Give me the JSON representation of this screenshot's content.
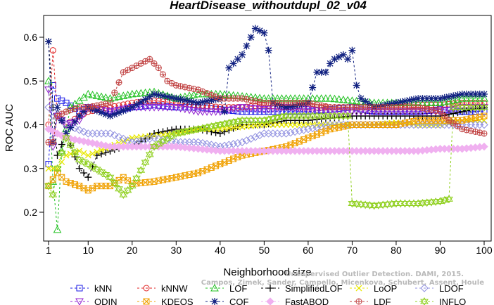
{
  "chart_data": {
    "type": "line",
    "title": "HeartDisease_withoutdupl_02_v04",
    "xlabel": "Neighborhood size",
    "ylabel": "ROC AUC",
    "xlim": [
      1,
      100
    ],
    "ylim": [
      0.15,
      0.65
    ],
    "x_ticks": [
      1,
      10,
      20,
      30,
      40,
      50,
      60,
      70,
      80,
      90,
      100
    ],
    "y_ticks": [
      0.2,
      0.3,
      0.4,
      0.5,
      0.6
    ],
    "legend_position": "bottom",
    "watermark": [
      "Campos, Zimek, Sander, Campello, Micenkova, Schubert, Assent, Houle",
      "Unsupervised Outlier Detection. DAMI, 2015."
    ],
    "series": [
      {
        "name": "kNN",
        "color": "#1a1ae6",
        "marker": "square",
        "points": [
          [
            1,
            0.31
          ],
          [
            2,
            0.49
          ],
          [
            3,
            0.46
          ],
          [
            5,
            0.45
          ],
          [
            8,
            0.43
          ],
          [
            10,
            0.44
          ],
          [
            15,
            0.43
          ],
          [
            20,
            0.44
          ],
          [
            25,
            0.445
          ],
          [
            30,
            0.44
          ],
          [
            35,
            0.44
          ],
          [
            40,
            0.435
          ],
          [
            45,
            0.43
          ],
          [
            50,
            0.43
          ],
          [
            55,
            0.43
          ],
          [
            60,
            0.43
          ],
          [
            65,
            0.435
          ],
          [
            70,
            0.44
          ],
          [
            75,
            0.43
          ],
          [
            80,
            0.43
          ],
          [
            85,
            0.43
          ],
          [
            90,
            0.435
          ],
          [
            95,
            0.43
          ],
          [
            100,
            0.43
          ]
        ]
      },
      {
        "name": "kNNW",
        "color": "#e02020",
        "marker": "circle",
        "points": [
          [
            1,
            0.4
          ],
          [
            2,
            0.57
          ],
          [
            3,
            0.42
          ],
          [
            5,
            0.4
          ],
          [
            8,
            0.42
          ],
          [
            10,
            0.43
          ],
          [
            15,
            0.44
          ],
          [
            20,
            0.45
          ],
          [
            25,
            0.455
          ],
          [
            30,
            0.45
          ],
          [
            35,
            0.445
          ],
          [
            40,
            0.44
          ],
          [
            45,
            0.44
          ],
          [
            50,
            0.445
          ],
          [
            55,
            0.44
          ],
          [
            60,
            0.44
          ],
          [
            65,
            0.44
          ],
          [
            70,
            0.44
          ],
          [
            75,
            0.44
          ],
          [
            80,
            0.44
          ],
          [
            85,
            0.445
          ],
          [
            90,
            0.445
          ],
          [
            95,
            0.45
          ],
          [
            100,
            0.45
          ]
        ]
      },
      {
        "name": "LOF",
        "color": "#20c020",
        "marker": "triangle",
        "points": [
          [
            1,
            0.5
          ],
          [
            2,
            0.27
          ],
          [
            3,
            0.16
          ],
          [
            4,
            0.34
          ],
          [
            6,
            0.44
          ],
          [
            10,
            0.47
          ],
          [
            15,
            0.46
          ],
          [
            20,
            0.47
          ],
          [
            25,
            0.475
          ],
          [
            30,
            0.46
          ],
          [
            35,
            0.47
          ],
          [
            40,
            0.47
          ],
          [
            45,
            0.465
          ],
          [
            50,
            0.46
          ],
          [
            55,
            0.46
          ],
          [
            60,
            0.46
          ],
          [
            65,
            0.46
          ],
          [
            70,
            0.455
          ],
          [
            75,
            0.45
          ],
          [
            80,
            0.45
          ],
          [
            85,
            0.45
          ],
          [
            90,
            0.45
          ],
          [
            95,
            0.46
          ],
          [
            100,
            0.46
          ]
        ]
      },
      {
        "name": "SimplifiedLOF",
        "color": "#000000",
        "marker": "plus",
        "points": [
          [
            1,
            0.59
          ],
          [
            2,
            0.44
          ],
          [
            3,
            0.33
          ],
          [
            5,
            0.38
          ],
          [
            8,
            0.3
          ],
          [
            10,
            0.28
          ],
          [
            12,
            0.33
          ],
          [
            15,
            0.34
          ],
          [
            18,
            0.35
          ],
          [
            20,
            0.35
          ],
          [
            25,
            0.38
          ],
          [
            30,
            0.39
          ],
          [
            35,
            0.39
          ],
          [
            40,
            0.38
          ],
          [
            45,
            0.4
          ],
          [
            50,
            0.4
          ],
          [
            55,
            0.41
          ],
          [
            60,
            0.41
          ],
          [
            65,
            0.415
          ],
          [
            70,
            0.42
          ],
          [
            75,
            0.42
          ],
          [
            80,
            0.42
          ],
          [
            85,
            0.42
          ],
          [
            90,
            0.42
          ],
          [
            95,
            0.43
          ],
          [
            100,
            0.44
          ]
        ]
      },
      {
        "name": "LoOP",
        "color": "#e8e800",
        "marker": "cross",
        "points": [
          [
            1,
            0.3
          ],
          [
            3,
            0.3
          ],
          [
            5,
            0.33
          ],
          [
            8,
            0.34
          ],
          [
            10,
            0.33
          ],
          [
            15,
            0.35
          ],
          [
            20,
            0.37
          ],
          [
            25,
            0.375
          ],
          [
            30,
            0.38
          ],
          [
            35,
            0.39
          ],
          [
            40,
            0.39
          ],
          [
            45,
            0.395
          ],
          [
            50,
            0.4
          ],
          [
            55,
            0.4
          ],
          [
            60,
            0.4
          ],
          [
            65,
            0.4
          ],
          [
            70,
            0.4
          ],
          [
            75,
            0.4
          ],
          [
            80,
            0.405
          ],
          [
            85,
            0.4
          ],
          [
            90,
            0.4
          ],
          [
            95,
            0.41
          ],
          [
            100,
            0.41
          ]
        ]
      },
      {
        "name": "LDOF",
        "color": "#9090e0",
        "marker": "diamond",
        "points": [
          [
            1,
            0.44
          ],
          [
            3,
            0.42
          ],
          [
            5,
            0.4
          ],
          [
            10,
            0.38
          ],
          [
            15,
            0.38
          ],
          [
            20,
            0.36
          ],
          [
            25,
            0.37
          ],
          [
            30,
            0.36
          ],
          [
            35,
            0.36
          ],
          [
            40,
            0.35
          ],
          [
            45,
            0.36
          ],
          [
            50,
            0.38
          ],
          [
            55,
            0.38
          ],
          [
            60,
            0.39
          ],
          [
            65,
            0.4
          ],
          [
            70,
            0.4
          ],
          [
            75,
            0.4
          ],
          [
            80,
            0.4
          ],
          [
            85,
            0.4
          ],
          [
            90,
            0.4
          ],
          [
            95,
            0.4
          ],
          [
            100,
            0.4
          ]
        ]
      },
      {
        "name": "ODIN",
        "color": "#9020d0",
        "marker": "triangle-down",
        "points": [
          [
            1,
            0.48
          ],
          [
            2,
            0.35
          ],
          [
            3,
            0.42
          ],
          [
            5,
            0.4
          ],
          [
            8,
            0.41
          ],
          [
            10,
            0.44
          ],
          [
            15,
            0.43
          ],
          [
            20,
            0.44
          ],
          [
            25,
            0.44
          ],
          [
            30,
            0.44
          ],
          [
            35,
            0.43
          ],
          [
            40,
            0.43
          ],
          [
            45,
            0.44
          ],
          [
            50,
            0.435
          ],
          [
            55,
            0.44
          ],
          [
            60,
            0.435
          ],
          [
            65,
            0.43
          ],
          [
            70,
            0.43
          ],
          [
            75,
            0.43
          ],
          [
            80,
            0.43
          ],
          [
            85,
            0.43
          ],
          [
            90,
            0.43
          ],
          [
            95,
            0.44
          ],
          [
            100,
            0.44
          ]
        ]
      },
      {
        "name": "KDEOS",
        "color": "#f0a000",
        "marker": "square-x",
        "points": [
          [
            1,
            0.26
          ],
          [
            3,
            0.29
          ],
          [
            5,
            0.27
          ],
          [
            8,
            0.26
          ],
          [
            10,
            0.25
          ],
          [
            12,
            0.26
          ],
          [
            15,
            0.26
          ],
          [
            18,
            0.28
          ],
          [
            20,
            0.265
          ],
          [
            25,
            0.27
          ],
          [
            30,
            0.28
          ],
          [
            35,
            0.29
          ],
          [
            40,
            0.31
          ],
          [
            45,
            0.33
          ],
          [
            50,
            0.34
          ],
          [
            55,
            0.35
          ],
          [
            60,
            0.37
          ],
          [
            65,
            0.39
          ],
          [
            70,
            0.4
          ],
          [
            75,
            0.4
          ],
          [
            80,
            0.4
          ],
          [
            85,
            0.41
          ],
          [
            90,
            0.41
          ],
          [
            95,
            0.41
          ],
          [
            100,
            0.42
          ]
        ]
      },
      {
        "name": "COF",
        "color": "#102080",
        "marker": "star",
        "points": [
          [
            1,
            0.59
          ],
          [
            2,
            0.36
          ],
          [
            3,
            0.44
          ],
          [
            5,
            0.38
          ],
          [
            8,
            0.42
          ],
          [
            10,
            0.44
          ],
          [
            15,
            0.42
          ],
          [
            20,
            0.44
          ],
          [
            25,
            0.47
          ],
          [
            30,
            0.46
          ],
          [
            35,
            0.45
          ],
          [
            40,
            0.46
          ],
          [
            41,
            0.43
          ],
          [
            42,
            0.53
          ],
          [
            45,
            0.56
          ],
          [
            48,
            0.62
          ],
          [
            50,
            0.61
          ],
          [
            51,
            0.57
          ],
          [
            52,
            0.45
          ],
          [
            55,
            0.44
          ],
          [
            60,
            0.45
          ],
          [
            62,
            0.52
          ],
          [
            64,
            0.52
          ],
          [
            65,
            0.54
          ],
          [
            66,
            0.55
          ],
          [
            68,
            0.56
          ],
          [
            69,
            0.55
          ],
          [
            70,
            0.57
          ],
          [
            71,
            0.49
          ],
          [
            72,
            0.46
          ],
          [
            75,
            0.44
          ],
          [
            80,
            0.45
          ],
          [
            85,
            0.46
          ],
          [
            90,
            0.46
          ],
          [
            95,
            0.47
          ],
          [
            100,
            0.47
          ]
        ]
      },
      {
        "name": "FastABOD",
        "color": "#f0b0f0",
        "marker": "diamond-filled",
        "points": [
          [
            1,
            0.39
          ],
          [
            3,
            0.38
          ],
          [
            5,
            0.37
          ],
          [
            10,
            0.36
          ],
          [
            15,
            0.35
          ],
          [
            20,
            0.35
          ],
          [
            25,
            0.35
          ],
          [
            30,
            0.35
          ],
          [
            35,
            0.345
          ],
          [
            40,
            0.34
          ],
          [
            45,
            0.34
          ],
          [
            50,
            0.34
          ],
          [
            55,
            0.34
          ],
          [
            60,
            0.34
          ],
          [
            65,
            0.34
          ],
          [
            70,
            0.34
          ],
          [
            75,
            0.34
          ],
          [
            80,
            0.34
          ],
          [
            85,
            0.34
          ],
          [
            90,
            0.345
          ],
          [
            95,
            0.345
          ],
          [
            100,
            0.35
          ]
        ]
      },
      {
        "name": "LDF",
        "color": "#c04040",
        "marker": "circle-plus",
        "points": [
          [
            1,
            0.36
          ],
          [
            2,
            0.36
          ],
          [
            3,
            0.42
          ],
          [
            5,
            0.43
          ],
          [
            8,
            0.44
          ],
          [
            10,
            0.44
          ],
          [
            15,
            0.45
          ],
          [
            18,
            0.52
          ],
          [
            20,
            0.53
          ],
          [
            22,
            0.54
          ],
          [
            24,
            0.55
          ],
          [
            26,
            0.53
          ],
          [
            28,
            0.5
          ],
          [
            30,
            0.49
          ],
          [
            35,
            0.48
          ],
          [
            40,
            0.46
          ],
          [
            45,
            0.46
          ],
          [
            50,
            0.45
          ],
          [
            55,
            0.45
          ],
          [
            60,
            0.45
          ],
          [
            65,
            0.44
          ],
          [
            70,
            0.44
          ],
          [
            75,
            0.44
          ],
          [
            80,
            0.44
          ],
          [
            85,
            0.44
          ],
          [
            90,
            0.43
          ],
          [
            92,
            0.41
          ],
          [
            95,
            0.39
          ],
          [
            100,
            0.38
          ]
        ]
      },
      {
        "name": "INFLO",
        "color": "#90d020",
        "marker": "star-of-david",
        "points": [
          [
            1,
            0.26
          ],
          [
            2,
            0.24
          ],
          [
            3,
            0.3
          ],
          [
            5,
            0.37
          ],
          [
            8,
            0.32
          ],
          [
            10,
            0.31
          ],
          [
            15,
            0.28
          ],
          [
            18,
            0.24
          ],
          [
            20,
            0.26
          ],
          [
            25,
            0.35
          ],
          [
            30,
            0.38
          ],
          [
            35,
            0.39
          ],
          [
            40,
            0.4
          ],
          [
            45,
            0.41
          ],
          [
            50,
            0.41
          ],
          [
            55,
            0.42
          ],
          [
            60,
            0.42
          ],
          [
            65,
            0.42
          ],
          [
            69,
            0.42
          ],
          [
            70,
            0.22
          ],
          [
            75,
            0.215
          ],
          [
            80,
            0.22
          ],
          [
            85,
            0.22
          ],
          [
            90,
            0.225
          ],
          [
            92,
            0.23
          ],
          [
            93,
            0.44
          ],
          [
            95,
            0.44
          ],
          [
            100,
            0.44
          ]
        ]
      }
    ]
  }
}
